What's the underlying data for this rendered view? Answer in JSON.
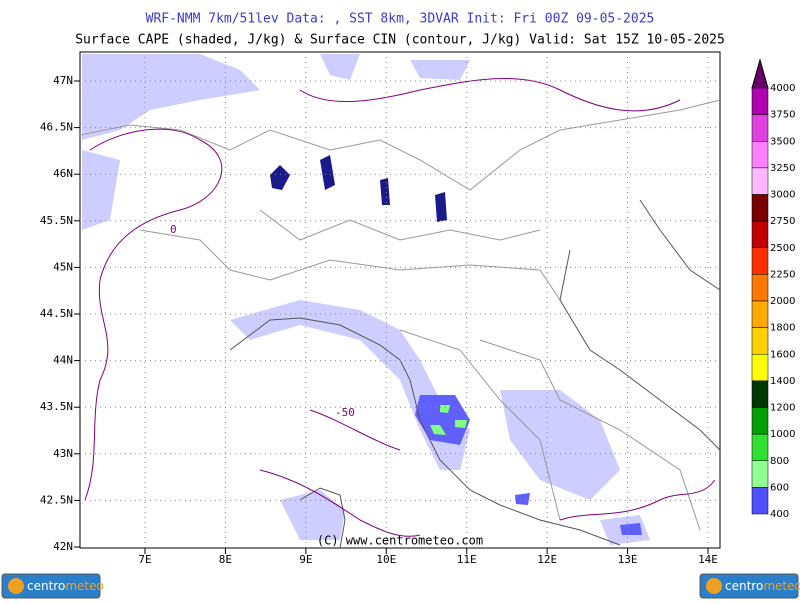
{
  "header": {
    "line1": "WRF-NMM 7km/51lev  Data: , SST 8km, 3DVAR  Init: Fri 00Z 09-05-2025",
    "line2": "Surface CAPE (shaded, J/kg) & Surface CIN (contour, J/kg)  Valid: Sat 15Z 10-05-2025"
  },
  "map": {
    "lat_labels": [
      "47N",
      "46.5N",
      "46N",
      "45.5N",
      "45N",
      "44.5N",
      "44N",
      "43.5N",
      "43N",
      "42.5N",
      "42N"
    ],
    "lon_labels": [
      "7E",
      "8E",
      "9E",
      "10E",
      "11E",
      "12E",
      "13E",
      "14E"
    ],
    "contour_labels": [
      "-50",
      "0"
    ],
    "copyright": "(C) www.centrometeo.com"
  },
  "colorbar": {
    "labels": [
      "4000",
      "3750",
      "3500",
      "3250",
      "3000",
      "2750",
      "2500",
      "2250",
      "2000",
      "1800",
      "1600",
      "1400",
      "1200",
      "1000",
      "800",
      "600",
      "400"
    ],
    "colors": [
      "#6a006a",
      "#b000b0",
      "#e040e0",
      "#ff80ff",
      "#ffb8ff",
      "#7a0000",
      "#c00000",
      "#ff3000",
      "#ff7800",
      "#ffa800",
      "#ffd000",
      "#ffff00",
      "#003800",
      "#00a000",
      "#30e030",
      "#90ff90",
      "#5050ff",
      "#9090ff",
      "#c8c8ff"
    ]
  },
  "logos": {
    "left": {
      "part1": "centro",
      "part2": "meteo"
    },
    "right": {
      "part1": "centro",
      "part2": "meteo"
    }
  }
}
